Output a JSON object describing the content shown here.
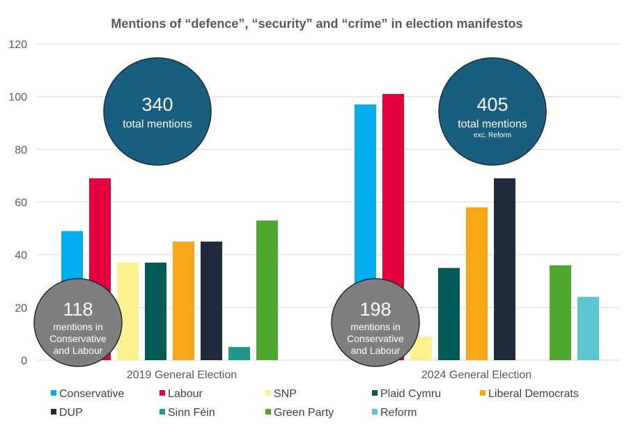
{
  "chart_data": {
    "type": "bar",
    "title": "Mentions of “defence”, “security” and “crime” in election manifestos",
    "xlabel": "",
    "ylabel": "",
    "ylim": [
      0,
      120
    ],
    "yticks": [
      0,
      20,
      40,
      60,
      80,
      100,
      120
    ],
    "grid": true,
    "legend_position": "bottom",
    "categories": [
      "2019 General Election",
      "2024 General Election"
    ],
    "series": [
      {
        "name": "Conservative",
        "color": "#00AEEF",
        "values": [
          49,
          97
        ]
      },
      {
        "name": "Labour",
        "color": "#E4003B",
        "values": [
          69,
          101
        ]
      },
      {
        "name": "SNP",
        "color": "#FDF38E",
        "values": [
          37,
          9
        ]
      },
      {
        "name": "Plaid Cymru",
        "color": "#005B54",
        "values": [
          37,
          35
        ]
      },
      {
        "name": "Liberal Democrats",
        "color": "#FAA61A",
        "values": [
          45,
          58
        ]
      },
      {
        "name": "DUP",
        "color": "#1D2B3A",
        "values": [
          45,
          69
        ]
      },
      {
        "name": "Sinn Féin",
        "color": "#1F9A8A",
        "values": [
          5,
          null
        ]
      },
      {
        "name": "Green Party",
        "color": "#4EA72E",
        "values": [
          53,
          36
        ]
      },
      {
        "name": "Reform",
        "color": "#5BC5D1",
        "values": [
          null,
          24
        ]
      }
    ],
    "annotations": [
      {
        "group": "2019 General Election",
        "kind": "total",
        "number": "340",
        "text": "total mentions",
        "subtext": ""
      },
      {
        "group": "2024 General Election",
        "kind": "total",
        "number": "405",
        "text": "total mentions",
        "subtext": "exc. Reform"
      },
      {
        "group": "2019 General Election",
        "kind": "con-lab",
        "number": "118",
        "lines": [
          "mentions in",
          "Conservative",
          "and Labour"
        ]
      },
      {
        "group": "2024 General Election",
        "kind": "con-lab",
        "number": "198",
        "lines": [
          "mentions in",
          "Conservative",
          "and Labour"
        ]
      }
    ]
  },
  "colors": {
    "total_bubble": "#175E7F",
    "con_lab_bubble": "#7F7F7F",
    "bubble_outline": "#1D2B3A"
  }
}
